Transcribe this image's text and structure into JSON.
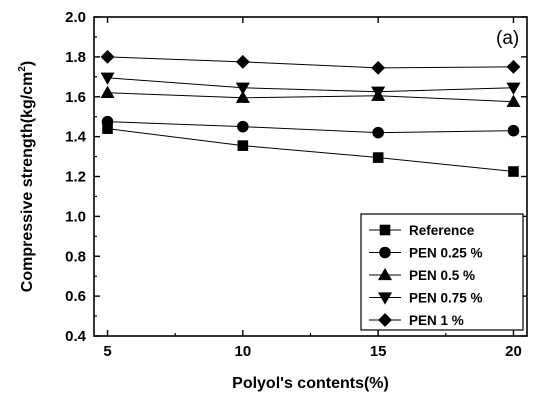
{
  "chart_data": {
    "type": "line",
    "panel_label": "(a)",
    "xlabel": "Polyol's contents(%)",
    "ylabel_main": "Compressive strength(kg/cm",
    "ylabel_sup": "2",
    "ylabel_close": ")",
    "x": [
      5,
      10,
      15,
      20
    ],
    "xlim": [
      4.5,
      20.5
    ],
    "ylim": [
      0.4,
      2.0
    ],
    "xticks": [
      5,
      10,
      15,
      20
    ],
    "yticks": [
      0.4,
      0.6,
      0.8,
      1.0,
      1.2,
      1.4,
      1.6,
      1.8,
      2.0
    ],
    "ytick_labels": [
      "0.4",
      "0.6",
      "0.8",
      "1.0",
      "1.2",
      "1.4",
      "1.6",
      "1.8",
      "2.0"
    ],
    "legend_position": "bottom-right",
    "series": [
      {
        "name": "Reference",
        "marker": "square",
        "values": [
          1.44,
          1.355,
          1.295,
          1.225
        ]
      },
      {
        "name": "PEN 0.25 %",
        "marker": "circle",
        "values": [
          1.475,
          1.45,
          1.42,
          1.43
        ]
      },
      {
        "name": "PEN 0.5 %",
        "marker": "triangle-up",
        "values": [
          1.62,
          1.595,
          1.605,
          1.575
        ]
      },
      {
        "name": "PEN 0.75 %",
        "marker": "triangle-down",
        "values": [
          1.695,
          1.645,
          1.625,
          1.645
        ]
      },
      {
        "name": "PEN 1 %",
        "marker": "diamond",
        "values": [
          1.8,
          1.775,
          1.745,
          1.75
        ]
      }
    ]
  }
}
